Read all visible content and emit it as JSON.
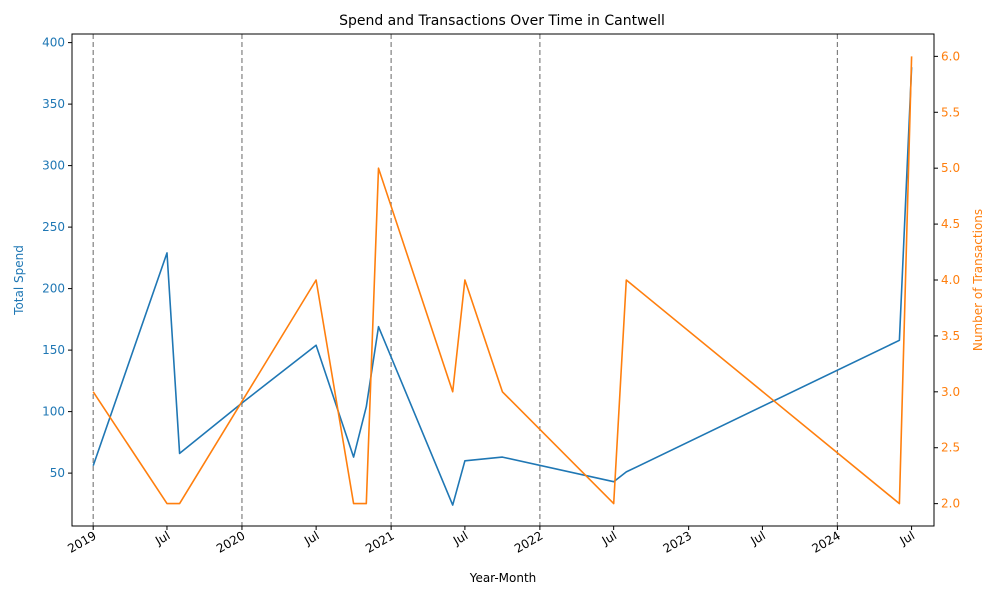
{
  "chart_data": {
    "type": "line",
    "title": "Spend and Transactions Over Time in Cantwell",
    "xlabel": "Year-Month",
    "ylabel_left": "Total Spend",
    "ylabel_right": "Number of Transactions",
    "xlim": [
      "2018-11-10",
      "2024-08-25"
    ],
    "ylim_left": [
      7,
      407
    ],
    "ylim_right": [
      1.8,
      6.2
    ],
    "left_ticks": [
      50,
      100,
      150,
      200,
      250,
      300,
      350,
      400
    ],
    "right_ticks": [
      2.0,
      2.5,
      3.0,
      3.5,
      4.0,
      4.5,
      5.0,
      5.5,
      6.0
    ],
    "x_ticks": [
      {
        "date": "2019-01-01",
        "label": "2019"
      },
      {
        "date": "2019-07-01",
        "label": "Jul"
      },
      {
        "date": "2020-01-01",
        "label": "2020"
      },
      {
        "date": "2020-07-01",
        "label": "Jul"
      },
      {
        "date": "2021-01-01",
        "label": "2021"
      },
      {
        "date": "2021-07-01",
        "label": "Jul"
      },
      {
        "date": "2022-01-01",
        "label": "2022"
      },
      {
        "date": "2022-07-01",
        "label": "Jul"
      },
      {
        "date": "2023-01-01",
        "label": "2023"
      },
      {
        "date": "2023-07-01",
        "label": "Jul"
      },
      {
        "date": "2024-01-01",
        "label": "2024"
      },
      {
        "date": "2024-07-01",
        "label": "Jul"
      }
    ],
    "vlines": [
      "2019-01-01",
      "2020-01-01",
      "2021-01-01",
      "2022-01-01",
      "2024-01-01"
    ],
    "series": [
      {
        "name": "Total Spend",
        "axis": "left",
        "color": "#1f77b4",
        "x": [
          "2019-01-01",
          "2019-07-01",
          "2019-08-01",
          "2020-01-01",
          "2020-07-01",
          "2020-10-01",
          "2020-11-01",
          "2020-12-01",
          "2021-06-01",
          "2021-07-01",
          "2021-10-01",
          "2022-07-01",
          "2022-08-01",
          "2024-06-01",
          "2024-07-01"
        ],
        "y": [
          56,
          229,
          66,
          107,
          154,
          63,
          104,
          169,
          24,
          60,
          63,
          43,
          51,
          158,
          380
        ]
      },
      {
        "name": "Number of Transactions",
        "axis": "right",
        "color": "#ff7f0e",
        "x": [
          "2019-01-01",
          "2019-07-01",
          "2019-08-01",
          "2020-07-01",
          "2020-10-01",
          "2020-11-01",
          "2020-12-01",
          "2021-06-01",
          "2021-07-01",
          "2021-10-01",
          "2022-07-01",
          "2022-08-01",
          "2024-06-01",
          "2024-07-01"
        ],
        "y": [
          3,
          2,
          2,
          4,
          2,
          2,
          5,
          3,
          4,
          3,
          2,
          4,
          2,
          6
        ]
      }
    ],
    "colors": {
      "left_axis": "#1f77b4",
      "right_axis": "#ff7f0e",
      "vline": "#808080"
    }
  }
}
